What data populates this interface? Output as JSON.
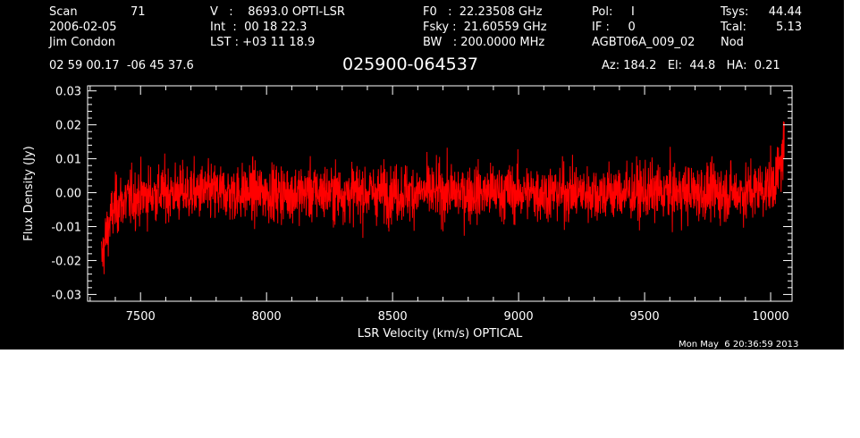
{
  "header": {
    "scan_label": "Scan",
    "scan_value": "71",
    "date": "2006-02-05",
    "observer": "Jim Condon",
    "v_line": "V   :    8693.0 OPTI-LSR",
    "int_line": "Int  :  00 18 22.3",
    "lst_line": "LST : +03 11 18.9",
    "f0_line": "F0   :  22.23508 GHz",
    "fsky_line": "Fsky :  21.60559 GHz",
    "bw_line": "BW   : 200.0000 MHz",
    "pol_line": "Pol:     I",
    "if_line": "IF :     0",
    "project": "AGBT06A_009_02",
    "tsys_label": "Tsys:",
    "tsys_value": "44.44",
    "tcal_label": "Tcal:",
    "tcal_value": "5.13",
    "nod": "Nod",
    "coords": "02 59 00.17  -06 45 37.6",
    "source": "025900-064537",
    "az_el_ha": "Az: 184.2   El:  44.8   HA:  0.21"
  },
  "timestamp": "Mon May  6 20:36:59 2013",
  "colors": {
    "background": "#000000",
    "axes": "#ffffff",
    "trace": "#ff0000"
  },
  "chart_data": {
    "type": "line",
    "xlabel": "LSR Velocity (km/s) OPTICAL",
    "ylabel": "Flux Density (Jy)",
    "xlim": [
      7290,
      10085
    ],
    "ylim": [
      -0.032,
      0.0315
    ],
    "x_ticks": [
      7500,
      8000,
      8500,
      9000,
      9500,
      10000
    ],
    "x_tick_labels": [
      "7500",
      "8000",
      "8500",
      "9000",
      "9500",
      "10000"
    ],
    "y_ticks": [
      -0.03,
      -0.02,
      -0.01,
      0.0,
      0.01,
      0.02,
      0.03
    ],
    "y_tick_labels": [
      "-0.03",
      "-0.02",
      "-0.01",
      "0.00",
      "0.01",
      "0.02",
      "0.03"
    ],
    "grid": false,
    "series": [
      {
        "color": "#ff0000",
        "x": [
          7345,
          7360,
          7380,
          7400,
          7450,
          7500,
          7600,
          7700,
          7800,
          7900,
          8000,
          8100,
          8200,
          8300,
          8400,
          8500,
          8600,
          8700,
          8800,
          8900,
          9000,
          9100,
          9200,
          9300,
          9400,
          9500,
          9600,
          9700,
          9800,
          9850,
          9900,
          9950,
          10000,
          10020,
          10040,
          10055
        ],
        "y": [
          -0.02,
          -0.014,
          -0.008,
          -0.004,
          -0.002,
          -0.001,
          0.0,
          0.0,
          0.0,
          0.0,
          0.0,
          0.0,
          0.0,
          0.0,
          0.0,
          0.0,
          0.0,
          0.0,
          0.0,
          0.0,
          0.0,
          0.0,
          0.0,
          0.0,
          0.0,
          0.0,
          0.0,
          0.0,
          0.0,
          0.0,
          0.0,
          0.001,
          0.002,
          0.004,
          0.008,
          0.015
        ],
        "noise_rms_jy": 0.0042
      }
    ]
  }
}
